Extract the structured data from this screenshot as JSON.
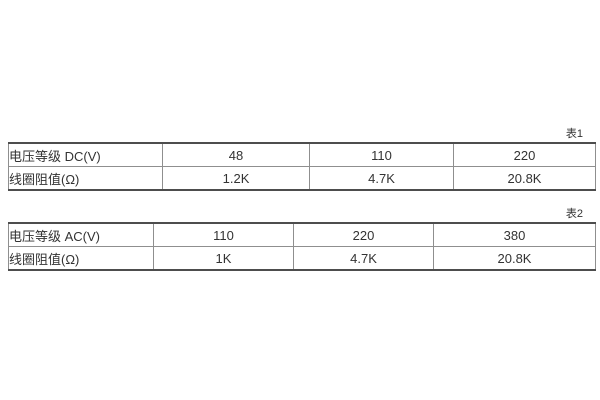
{
  "page": {
    "background": "#ffffff",
    "text_color": "#333333",
    "border_thick_color": "#4d4d4d",
    "border_thin_color": "#8f8f8f"
  },
  "table1": {
    "caption": "表1",
    "rows": [
      {
        "header": "电压等级 DC(V)",
        "values": [
          "48",
          "110",
          "220"
        ]
      },
      {
        "header": "线圈阻值(Ω)",
        "values": [
          "1.2K",
          "4.7K",
          "20.8K"
        ]
      }
    ]
  },
  "table2": {
    "caption": "表2",
    "rows": [
      {
        "header": "电压等级 AC(V)",
        "values": [
          "110",
          "220",
          "380"
        ]
      },
      {
        "header": "线圈阻值(Ω)",
        "values": [
          "1K",
          "4.7K",
          "20.8K"
        ]
      }
    ]
  }
}
